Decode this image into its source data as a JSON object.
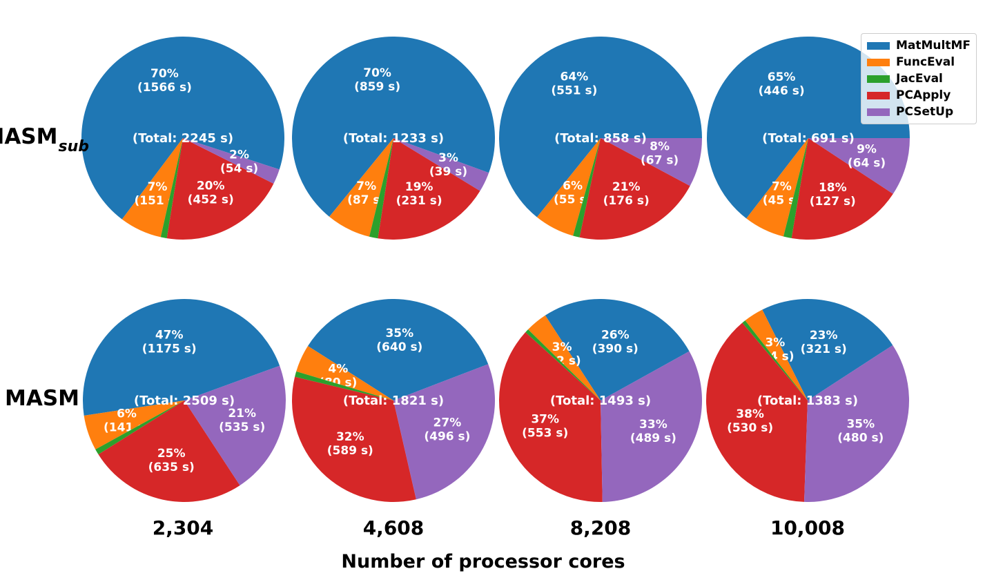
{
  "chart_data": {
    "type": "pie",
    "title": "",
    "xlabel": "Number of processor cores",
    "legend": {
      "position": "upper right",
      "entries": [
        {
          "label": "MatMultMF",
          "color": "#1f77b4"
        },
        {
          "label": "FuncEval",
          "color": "#ff7f0e"
        },
        {
          "label": "JacEval",
          "color": "#2ca02c"
        },
        {
          "label": "PCApply",
          "color": "#d62728"
        },
        {
          "label": "PCSetUp",
          "color": "#9467bd"
        }
      ]
    },
    "colors": {
      "MatMultMF": "#1f77b4",
      "FuncEval": "#ff7f0e",
      "JacEval": "#2ca02c",
      "PCApply": "#d62728",
      "PCSetUp": "#9467bd"
    },
    "row_labels": [
      {
        "text": "MASM",
        "subscript": "sub"
      },
      {
        "text": "MASM",
        "subscript": ""
      }
    ],
    "col_labels": [
      "2,304",
      "4,608",
      "8,208",
      "10,008"
    ],
    "pies": [
      {
        "id": "masm-sub-2304",
        "row": "MASM_sub",
        "cores": "2,304",
        "total_seconds": 2245,
        "total_label": "(Total: 2245 s)",
        "start_angle_deg": -18,
        "slices": [
          {
            "name": "MatMultMF",
            "seconds": 1566,
            "pct": 70,
            "pct_label": "70%",
            "sec_label": "(1566 s)"
          },
          {
            "name": "FuncEval",
            "seconds": 151,
            "pct": 7,
            "pct_label": "7%",
            "sec_label": "(151 s)"
          },
          {
            "name": "JacEval",
            "seconds": 22,
            "pct": 1
          },
          {
            "name": "PCApply",
            "seconds": 452,
            "pct": 20,
            "pct_label": "20%",
            "sec_label": "(452 s)"
          },
          {
            "name": "PCSetUp",
            "seconds": 54,
            "pct": 2,
            "pct_label": "2%",
            "sec_label": "(54 s)"
          }
        ]
      },
      {
        "id": "masm-sub-4608",
        "row": "MASM_sub",
        "cores": "4,608",
        "total_seconds": 1233,
        "total_label": "(Total: 1233 s)",
        "start_angle_deg": -20,
        "slices": [
          {
            "name": "MatMultMF",
            "seconds": 859,
            "pct": 70,
            "pct_label": "70%",
            "sec_label": "(859 s)"
          },
          {
            "name": "FuncEval",
            "seconds": 87,
            "pct": 7,
            "pct_label": "7%",
            "sec_label": "(87 s)"
          },
          {
            "name": "JacEval",
            "seconds": 17,
            "pct": 1
          },
          {
            "name": "PCApply",
            "seconds": 231,
            "pct": 19,
            "pct_label": "19%",
            "sec_label": "(231 s)"
          },
          {
            "name": "PCSetUp",
            "seconds": 39,
            "pct": 3,
            "pct_label": "3%",
            "sec_label": "(39 s)"
          }
        ]
      },
      {
        "id": "masm-sub-8208",
        "row": "MASM_sub",
        "cores": "8,208",
        "total_seconds": 858,
        "total_label": "(Total: 858 s)",
        "start_angle_deg": 0,
        "slices": [
          {
            "name": "MatMultMF",
            "seconds": 551,
            "pct": 64,
            "pct_label": "64%",
            "sec_label": "(551 s)"
          },
          {
            "name": "FuncEval",
            "seconds": 55,
            "pct": 6,
            "pct_label": "6%",
            "sec_label": "(55 s)"
          },
          {
            "name": "JacEval",
            "seconds": 9,
            "pct": 1
          },
          {
            "name": "PCApply",
            "seconds": 176,
            "pct": 21,
            "pct_label": "21%",
            "sec_label": "(176 s)"
          },
          {
            "name": "PCSetUp",
            "seconds": 67,
            "pct": 8,
            "pct_label": "8%",
            "sec_label": "(67 s)"
          }
        ]
      },
      {
        "id": "masm-sub-10008",
        "row": "MASM_sub",
        "cores": "10,008",
        "total_seconds": 691,
        "total_label": "(Total: 691 s)",
        "start_angle_deg": 0,
        "slices": [
          {
            "name": "MatMultMF",
            "seconds": 446,
            "pct": 65,
            "pct_label": "65%",
            "sec_label": "(446 s)"
          },
          {
            "name": "FuncEval",
            "seconds": 45,
            "pct": 7,
            "pct_label": "7%",
            "sec_label": "(45 s)"
          },
          {
            "name": "JacEval",
            "seconds": 9,
            "pct": 1
          },
          {
            "name": "PCApply",
            "seconds": 127,
            "pct": 18,
            "pct_label": "18%",
            "sec_label": "(127 s)"
          },
          {
            "name": "PCSetUp",
            "seconds": 64,
            "pct": 9,
            "pct_label": "9%",
            "sec_label": "(64 s)"
          }
        ]
      },
      {
        "id": "masm-2304",
        "row": "MASM",
        "cores": "2,304",
        "total_seconds": 2509,
        "total_label": "(Total: 2509 s)",
        "start_angle_deg": 20,
        "slices": [
          {
            "name": "MatMultMF",
            "seconds": 1175,
            "pct": 47,
            "pct_label": "47%",
            "sec_label": "(1175 s)"
          },
          {
            "name": "FuncEval",
            "seconds": 141,
            "pct": 6,
            "pct_label": "6%",
            "sec_label": "(141 s)"
          },
          {
            "name": "JacEval",
            "seconds": 23,
            "pct": 1
          },
          {
            "name": "PCApply",
            "seconds": 635,
            "pct": 25,
            "pct_label": "25%",
            "sec_label": "(635 s)"
          },
          {
            "name": "PCSetUp",
            "seconds": 535,
            "pct": 21,
            "pct_label": "21%",
            "sec_label": "(535 s)"
          }
        ]
      },
      {
        "id": "masm-4608",
        "row": "MASM",
        "cores": "4,608",
        "total_seconds": 1821,
        "total_label": "(Total: 1821 s)",
        "start_angle_deg": 21,
        "slices": [
          {
            "name": "MatMultMF",
            "seconds": 640,
            "pct": 35,
            "pct_label": "35%",
            "sec_label": "(640 s)"
          },
          {
            "name": "FuncEval",
            "seconds": 80,
            "pct": 4,
            "pct_label": "4%",
            "sec_label": "(80 s)"
          },
          {
            "name": "JacEval",
            "seconds": 16,
            "pct": 1
          },
          {
            "name": "PCApply",
            "seconds": 589,
            "pct": 32,
            "pct_label": "32%",
            "sec_label": "(589 s)"
          },
          {
            "name": "PCSetUp",
            "seconds": 496,
            "pct": 27,
            "pct_label": "27%",
            "sec_label": "(496 s)"
          }
        ]
      },
      {
        "id": "masm-8208",
        "row": "MASM",
        "cores": "8,208",
        "total_seconds": 1493,
        "total_label": "(Total: 1493 s)",
        "start_angle_deg": 29,
        "slices": [
          {
            "name": "MatMultMF",
            "seconds": 390,
            "pct": 26,
            "pct_label": "26%",
            "sec_label": "(390 s)"
          },
          {
            "name": "FuncEval",
            "seconds": 52,
            "pct": 3,
            "pct_label": "3%",
            "sec_label": "(52 s)"
          },
          {
            "name": "JacEval",
            "seconds": 9,
            "pct": 1
          },
          {
            "name": "PCApply",
            "seconds": 553,
            "pct": 37,
            "pct_label": "37%",
            "sec_label": "(553 s)"
          },
          {
            "name": "PCSetUp",
            "seconds": 489,
            "pct": 33,
            "pct_label": "33%",
            "sec_label": "(489 s)"
          }
        ]
      },
      {
        "id": "masm-10008",
        "row": "MASM",
        "cores": "10,008",
        "total_seconds": 1383,
        "total_label": "(Total: 1383 s)",
        "start_angle_deg": 33,
        "slices": [
          {
            "name": "MatMultMF",
            "seconds": 321,
            "pct": 23,
            "pct_label": "23%",
            "sec_label": "(321 s)"
          },
          {
            "name": "FuncEval",
            "seconds": 44,
            "pct": 3,
            "pct_label": "3%",
            "sec_label": "(44 s)"
          },
          {
            "name": "JacEval",
            "seconds": 8,
            "pct": 1
          },
          {
            "name": "PCApply",
            "seconds": 530,
            "pct": 38,
            "pct_label": "38%",
            "sec_label": "(530 s)"
          },
          {
            "name": "PCSetUp",
            "seconds": 480,
            "pct": 35,
            "pct_label": "35%",
            "sec_label": "(480 s)"
          }
        ]
      }
    ]
  }
}
